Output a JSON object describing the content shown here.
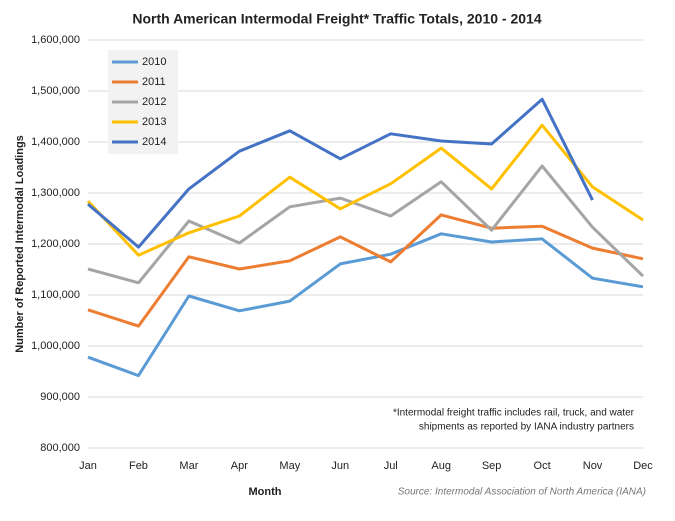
{
  "chart_data": {
    "type": "line",
    "title": "North American Intermodal Freight* Traffic Totals, 2010 - 2014",
    "x_label": "Month",
    "y_label": "Number of Reported Intermodal Loadings",
    "annotation": [
      "*Intermodal freight traffic includes rail, truck, and water",
      "shipments as reported by IANA industry partners"
    ],
    "source": "Source: Intermodal Association of North America (IANA)",
    "categories": [
      "Jan",
      "Feb",
      "Mar",
      "Apr",
      "May",
      "Jun",
      "Jul",
      "Aug",
      "Sep",
      "Oct",
      "Nov",
      "Dec"
    ],
    "series": [
      {
        "name": "2010",
        "color": "#5b9bd5",
        "values": [
          978000,
          942000,
          1098000,
          1069000,
          1088000,
          1161000,
          1180000,
          1220000,
          1204000,
          1210000,
          1133000,
          1116000
        ]
      },
      {
        "name": "2011",
        "color": "#ed7d31",
        "values": [
          1071000,
          1039000,
          1175000,
          1151000,
          1167000,
          1214000,
          1165000,
          1257000,
          1231000,
          1235000,
          1192000,
          1171000
        ]
      },
      {
        "name": "2012",
        "color": "#a5a5a5",
        "values": [
          1151000,
          1124000,
          1245000,
          1202000,
          1273000,
          1290000,
          1255000,
          1322000,
          1227000,
          1353000,
          1233000,
          1137000
        ]
      },
      {
        "name": "2013",
        "color": "#ffc000",
        "values": [
          1284000,
          1178000,
          1222000,
          1255000,
          1331000,
          1269000,
          1318000,
          1388000,
          1308000,
          1433000,
          1312000,
          1247000
        ]
      },
      {
        "name": "2014",
        "color": "#4472c4",
        "values": [
          1278000,
          1194000,
          1308000,
          1382000,
          1422000,
          1367000,
          1416000,
          1402000,
          1396000,
          1484000,
          1286000,
          null
        ]
      }
    ],
    "ylim": [
      800000,
      1600000
    ],
    "yticks": [
      {
        "value": 800000,
        "label": "800,000"
      },
      {
        "value": 900000,
        "label": "900,000"
      },
      {
        "value": 1000000,
        "label": "1,000,000"
      },
      {
        "value": 1100000,
        "label": "1,100,000"
      },
      {
        "value": 1200000,
        "label": "1,200,000"
      },
      {
        "value": 1300000,
        "label": "1,300,000"
      },
      {
        "value": 1400000,
        "label": "1,400,000"
      },
      {
        "value": 1500000,
        "label": "1,500,000"
      },
      {
        "value": 1600000,
        "label": "1,600,000"
      }
    ],
    "grid": true,
    "legend_position": "upper left"
  }
}
